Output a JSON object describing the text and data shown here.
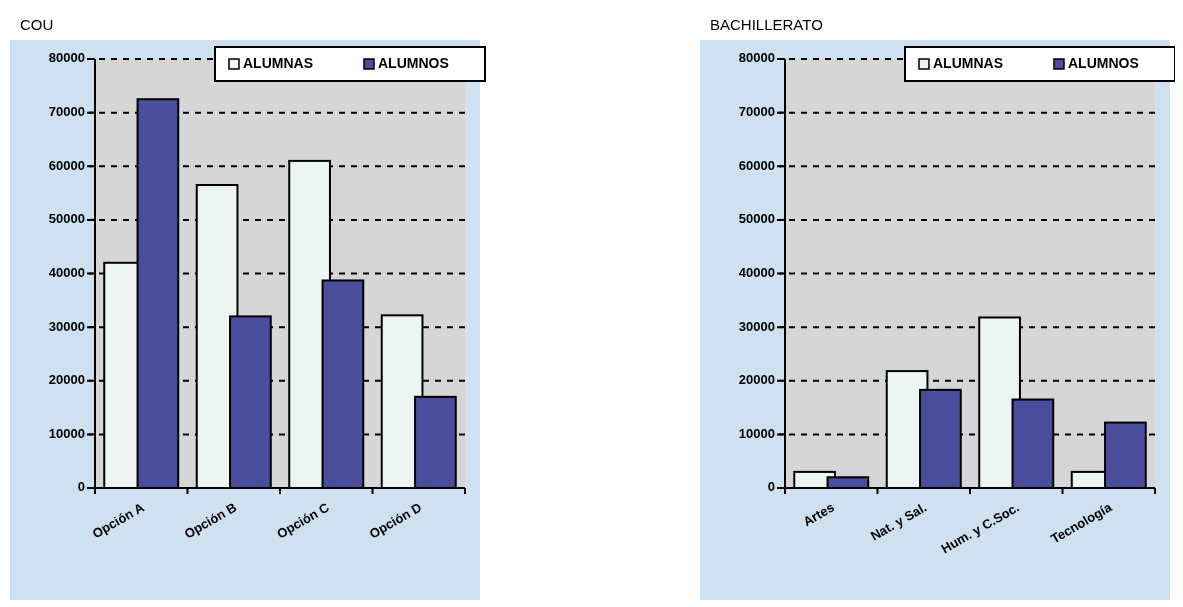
{
  "chart_data": [
    {
      "type": "bar",
      "title": "COU",
      "categories": [
        "Opción A",
        "Opción B",
        "Opción C",
        "Opción D"
      ],
      "series": [
        {
          "name": "ALUMNAS",
          "color": "#edf5f2",
          "values": [
            42000,
            56500,
            61000,
            32200
          ]
        },
        {
          "name": "ALUMNOS",
          "color": "#4a4c9c",
          "values": [
            72500,
            32000,
            38700,
            17000
          ]
        }
      ],
      "ylim": [
        0,
        80000
      ],
      "yticks": [
        0,
        10000,
        20000,
        30000,
        40000,
        50000,
        60000,
        70000,
        80000
      ],
      "grid": "y",
      "legend": "top right"
    },
    {
      "type": "bar",
      "title": "BACHILLERATO",
      "categories": [
        "Artes",
        "Nat. y Sal.",
        "Hum. y C.Soc.",
        "Tecnología"
      ],
      "series": [
        {
          "name": "ALUMNAS",
          "color": "#edf5f2",
          "values": [
            3000,
            21800,
            31800,
            3000
          ]
        },
        {
          "name": "ALUMNOS",
          "color": "#4a4c9c",
          "values": [
            2000,
            18300,
            16500,
            12200
          ]
        }
      ],
      "ylim": [
        0,
        80000
      ],
      "yticks": [
        0,
        10000,
        20000,
        30000,
        40000,
        50000,
        60000,
        70000,
        80000
      ],
      "grid": "y",
      "legend": "top right"
    }
  ]
}
